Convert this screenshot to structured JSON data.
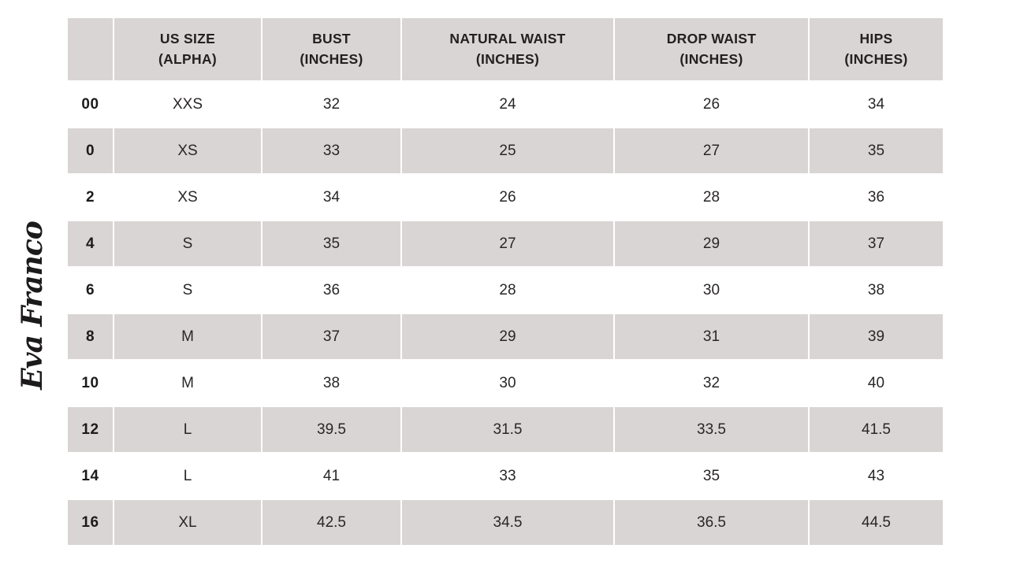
{
  "brand": {
    "logo_text": "Eva Franco"
  },
  "colors": {
    "header_bg": "#d9d5d4",
    "row_alt_bg": "#d9d5d4",
    "row_bg": "#ffffff",
    "text": "#262223",
    "background": "#ffffff"
  },
  "table": {
    "headers": [
      {
        "line1": "",
        "line2": ""
      },
      {
        "line1": "US SIZE",
        "line2": "(ALPHA)"
      },
      {
        "line1": "BUST",
        "line2": "(INCHES)"
      },
      {
        "line1": "NATURAL WAIST",
        "line2": "(INCHES)"
      },
      {
        "line1": "DROP WAIST",
        "line2": "(INCHES)"
      },
      {
        "line1": "HIPS",
        "line2": "(INCHES)"
      }
    ],
    "rows": [
      {
        "us_size": "00",
        "alpha": "XXS",
        "bust": "32",
        "natural_waist": "24",
        "drop_waist": "26",
        "hips": "34"
      },
      {
        "us_size": "0",
        "alpha": "XS",
        "bust": "33",
        "natural_waist": "25",
        "drop_waist": "27",
        "hips": "35"
      },
      {
        "us_size": "2",
        "alpha": "XS",
        "bust": "34",
        "natural_waist": "26",
        "drop_waist": "28",
        "hips": "36"
      },
      {
        "us_size": "4",
        "alpha": "S",
        "bust": "35",
        "natural_waist": "27",
        "drop_waist": "29",
        "hips": "37"
      },
      {
        "us_size": "6",
        "alpha": "S",
        "bust": "36",
        "natural_waist": "28",
        "drop_waist": "30",
        "hips": "38"
      },
      {
        "us_size": "8",
        "alpha": "M",
        "bust": "37",
        "natural_waist": "29",
        "drop_waist": "31",
        "hips": "39"
      },
      {
        "us_size": "10",
        "alpha": "M",
        "bust": "38",
        "natural_waist": "30",
        "drop_waist": "32",
        "hips": "40"
      },
      {
        "us_size": "12",
        "alpha": "L",
        "bust": "39.5",
        "natural_waist": "31.5",
        "drop_waist": "33.5",
        "hips": "41.5"
      },
      {
        "us_size": "14",
        "alpha": "L",
        "bust": "41",
        "natural_waist": "33",
        "drop_waist": "35",
        "hips": "43"
      },
      {
        "us_size": "16",
        "alpha": "XL",
        "bust": "42.5",
        "natural_waist": "34.5",
        "drop_waist": "36.5",
        "hips": "44.5"
      }
    ]
  },
  "chart_data": {
    "type": "table",
    "title": "Eva Franco women's size chart",
    "columns": [
      "US SIZE",
      "US SIZE (ALPHA)",
      "BUST (INCHES)",
      "NATURAL WAIST (INCHES)",
      "DROP WAIST (INCHES)",
      "HIPS (INCHES)"
    ],
    "rows": [
      [
        "00",
        "XXS",
        32,
        24,
        26,
        34
      ],
      [
        "0",
        "XS",
        33,
        25,
        27,
        35
      ],
      [
        "2",
        "XS",
        34,
        26,
        28,
        36
      ],
      [
        "4",
        "S",
        35,
        27,
        29,
        37
      ],
      [
        "6",
        "S",
        36,
        28,
        30,
        38
      ],
      [
        "8",
        "M",
        37,
        29,
        31,
        39
      ],
      [
        "10",
        "M",
        38,
        30,
        32,
        40
      ],
      [
        "12",
        "L",
        39.5,
        31.5,
        33.5,
        41.5
      ],
      [
        "14",
        "L",
        41,
        33,
        35,
        43
      ],
      [
        "16",
        "XL",
        42.5,
        34.5,
        36.5,
        44.5
      ]
    ],
    "layout": {
      "striped": true,
      "stripe_color": "#d9d5d4",
      "header_bg": "#d9d5d4"
    }
  }
}
